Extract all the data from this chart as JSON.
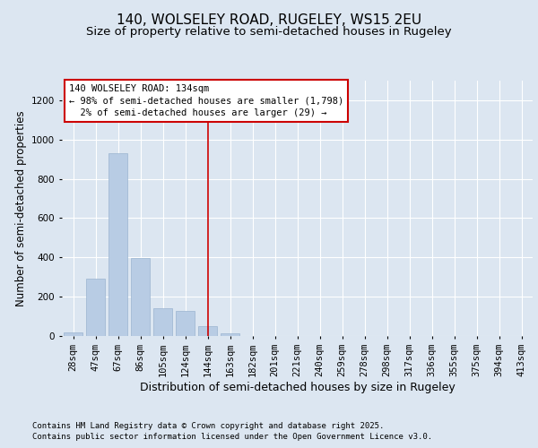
{
  "title_line1": "140, WOLSELEY ROAD, RUGELEY, WS15 2EU",
  "title_line2": "Size of property relative to semi-detached houses in Rugeley",
  "xlabel": "Distribution of semi-detached houses by size in Rugeley",
  "ylabel": "Number of semi-detached properties",
  "categories": [
    "28sqm",
    "47sqm",
    "67sqm",
    "86sqm",
    "105sqm",
    "124sqm",
    "144sqm",
    "163sqm",
    "182sqm",
    "201sqm",
    "221sqm",
    "240sqm",
    "259sqm",
    "278sqm",
    "298sqm",
    "317sqm",
    "336sqm",
    "355sqm",
    "375sqm",
    "394sqm",
    "413sqm"
  ],
  "values": [
    18,
    290,
    930,
    395,
    140,
    130,
    50,
    15,
    2,
    0,
    0,
    0,
    0,
    0,
    0,
    0,
    0,
    0,
    0,
    0,
    0
  ],
  "bar_color": "#b8cce4",
  "bar_edge_color": "#9ab4d0",
  "background_color": "#dce6f1",
  "plot_bg_color": "#dce6f1",
  "annotation_text": "140 WOLSELEY ROAD: 134sqm\n← 98% of semi-detached houses are smaller (1,798)\n  2% of semi-detached houses are larger (29) →",
  "vline_x_index": 6.0,
  "annotation_box_color": "#cc0000",
  "vline_color": "#cc0000",
  "ylim": [
    0,
    1300
  ],
  "yticks": [
    0,
    200,
    400,
    600,
    800,
    1000,
    1200
  ],
  "footer_line1": "Contains HM Land Registry data © Crown copyright and database right 2025.",
  "footer_line2": "Contains public sector information licensed under the Open Government Licence v3.0.",
  "title_fontsize": 11,
  "subtitle_fontsize": 9.5,
  "axis_label_fontsize": 8.5,
  "tick_fontsize": 7.5,
  "annotation_fontsize": 7.5,
  "footer_fontsize": 6.5
}
